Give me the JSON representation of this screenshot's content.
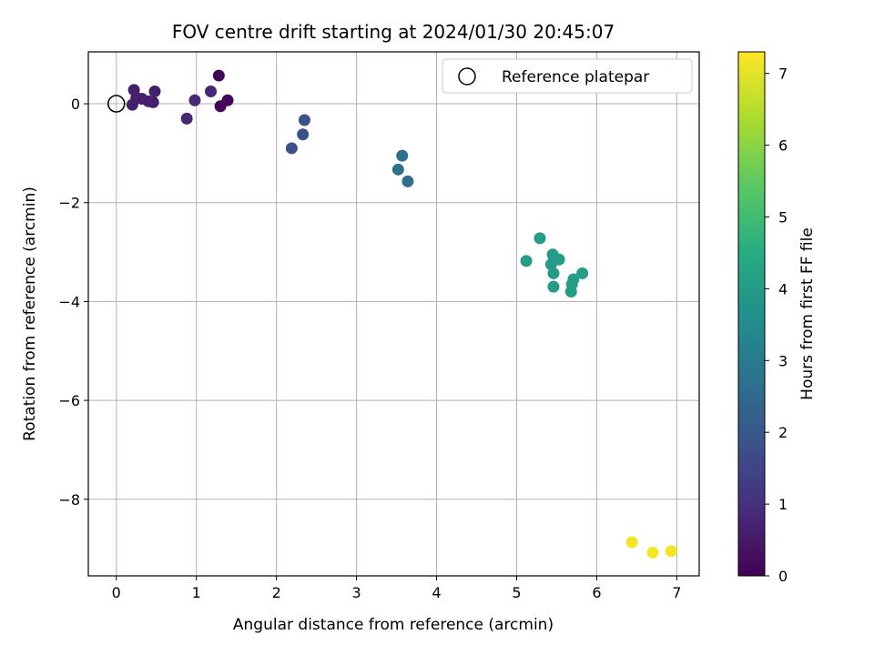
{
  "chart_data": {
    "type": "scatter",
    "title": "FOV centre drift starting at 2024/01/30 20:45:07",
    "xlabel": "Angular distance from reference (arcmin)",
    "ylabel": "Rotation from reference (arcmin)",
    "xlim": [
      -0.35,
      7.28
    ],
    "ylim": [
      -9.55,
      1.05
    ],
    "xticks": [
      0,
      1,
      2,
      3,
      4,
      5,
      6,
      7
    ],
    "yticks": [
      0,
      -2,
      -4,
      -6,
      -8
    ],
    "grid": true,
    "legend": {
      "placement": "top-right",
      "entries": [
        "Reference platepar"
      ]
    },
    "reference": {
      "x": 0,
      "y": 0,
      "marker": "open-circle"
    },
    "colorbar": {
      "label": "Hours from first FF file",
      "range": [
        0,
        7.3
      ],
      "ticks": [
        0,
        1,
        2,
        3,
        4,
        5,
        6,
        7
      ],
      "colormap": "viridis"
    },
    "points": [
      {
        "x": 0.2,
        "y": -0.02,
        "hours": 0.6
      },
      {
        "x": 0.22,
        "y": 0.28,
        "hours": 0.6
      },
      {
        "x": 0.25,
        "y": 0.12,
        "hours": 0.6
      },
      {
        "x": 0.32,
        "y": 0.1,
        "hours": 0.6
      },
      {
        "x": 0.4,
        "y": 0.05,
        "hours": 0.6
      },
      {
        "x": 0.46,
        "y": 0.03,
        "hours": 0.6
      },
      {
        "x": 0.48,
        "y": 0.25,
        "hours": 0.6
      },
      {
        "x": 0.88,
        "y": -0.3,
        "hours": 0.8
      },
      {
        "x": 0.98,
        "y": 0.07,
        "hours": 0.8
      },
      {
        "x": 1.18,
        "y": 0.25,
        "hours": 0.8
      },
      {
        "x": 1.28,
        "y": 0.57,
        "hours": 0.1
      },
      {
        "x": 1.3,
        "y": -0.05,
        "hours": 0.1
      },
      {
        "x": 1.39,
        "y": 0.07,
        "hours": 0.1
      },
      {
        "x": 2.19,
        "y": -0.9,
        "hours": 1.8
      },
      {
        "x": 2.33,
        "y": -0.62,
        "hours": 1.8
      },
      {
        "x": 2.35,
        "y": -0.33,
        "hours": 1.8
      },
      {
        "x": 3.52,
        "y": -1.33,
        "hours": 2.7
      },
      {
        "x": 3.57,
        "y": -1.05,
        "hours": 2.7
      },
      {
        "x": 3.64,
        "y": -1.57,
        "hours": 2.7
      },
      {
        "x": 5.12,
        "y": -3.18,
        "hours": 4.0
      },
      {
        "x": 5.29,
        "y": -2.72,
        "hours": 4.0
      },
      {
        "x": 5.43,
        "y": -3.25,
        "hours": 4.0
      },
      {
        "x": 5.45,
        "y": -3.05,
        "hours": 4.0
      },
      {
        "x": 5.46,
        "y": -3.43,
        "hours": 4.0
      },
      {
        "x": 5.46,
        "y": -3.7,
        "hours": 4.0
      },
      {
        "x": 5.53,
        "y": -3.15,
        "hours": 4.0
      },
      {
        "x": 5.68,
        "y": -3.8,
        "hours": 4.0
      },
      {
        "x": 5.69,
        "y": -3.65,
        "hours": 4.0
      },
      {
        "x": 5.71,
        "y": -3.55,
        "hours": 4.0
      },
      {
        "x": 5.82,
        "y": -3.43,
        "hours": 4.0
      },
      {
        "x": 6.44,
        "y": -8.87,
        "hours": 7.2
      },
      {
        "x": 6.7,
        "y": -9.08,
        "hours": 7.2
      },
      {
        "x": 6.93,
        "y": -9.05,
        "hours": 7.2
      }
    ]
  }
}
